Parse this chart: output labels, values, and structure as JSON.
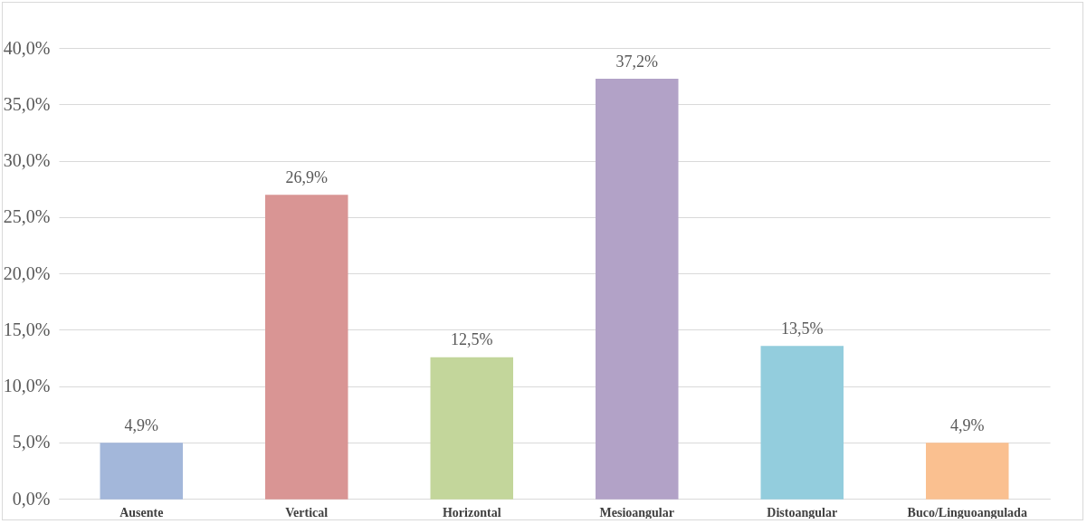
{
  "chart_data": {
    "type": "bar",
    "categories": [
      "Ausente",
      "Vertical",
      "Horizontal",
      "Mesioangular",
      "Distoangular",
      "Buco/Linguoangulada"
    ],
    "values": [
      4.9,
      26.9,
      12.5,
      37.2,
      13.5,
      4.9
    ],
    "colors": [
      "#a3b7da",
      "#d99594",
      "#c3d69b",
      "#b2a2c7",
      "#93cddd",
      "#fac090"
    ],
    "value_labels": [
      "4,9%",
      "26,9%",
      "12,5%",
      "37,2%",
      "13,5%",
      "4,9%"
    ],
    "ylim": [
      0,
      40
    ],
    "yticks": [
      {
        "value": 0,
        "label": "0,0%"
      },
      {
        "value": 5,
        "label": "5,0%"
      },
      {
        "value": 10,
        "label": "10,0%"
      },
      {
        "value": 15,
        "label": "15,0%"
      },
      {
        "value": 20,
        "label": "20,0%"
      },
      {
        "value": 25,
        "label": "25,0%"
      },
      {
        "value": 30,
        "label": "30,0%"
      },
      {
        "value": 35,
        "label": "35,0%"
      },
      {
        "value": 40,
        "label": "40,0%"
      }
    ],
    "grid": "y",
    "legend": false
  }
}
